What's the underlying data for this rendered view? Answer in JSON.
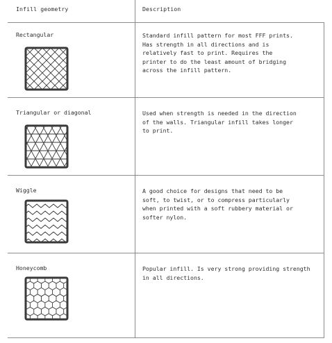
{
  "headers": {
    "geometry": "Infill geometry",
    "description": "Description"
  },
  "rows": [
    {
      "name": "Rectangular",
      "pattern_icon": "rectangular-infill-icon",
      "description": "Standard infill pattern for most FFF prints.\nHas strength in all directions and is\nrelatively fast to print. Requires the\nprinter to do the least amount of bridging\nacross the infill pattern."
    },
    {
      "name": "Triangular or diagonal",
      "pattern_icon": "triangular-infill-icon",
      "description": "Used when strength is needed in the direction\nof the walls. Triangular infill takes longer\nto print."
    },
    {
      "name": "Wiggle",
      "pattern_icon": "wiggle-infill-icon",
      "description": "A good choice for designs that need to be\nsoft, to twist, or to compress particularly\nwhen printed with a soft rubbery material or\nsofter nylon."
    },
    {
      "name": "Honeycomb",
      "pattern_icon": "honeycomb-infill-icon",
      "description": "Popular infill. Is very strong providing strength\nin all directions."
    }
  ]
}
